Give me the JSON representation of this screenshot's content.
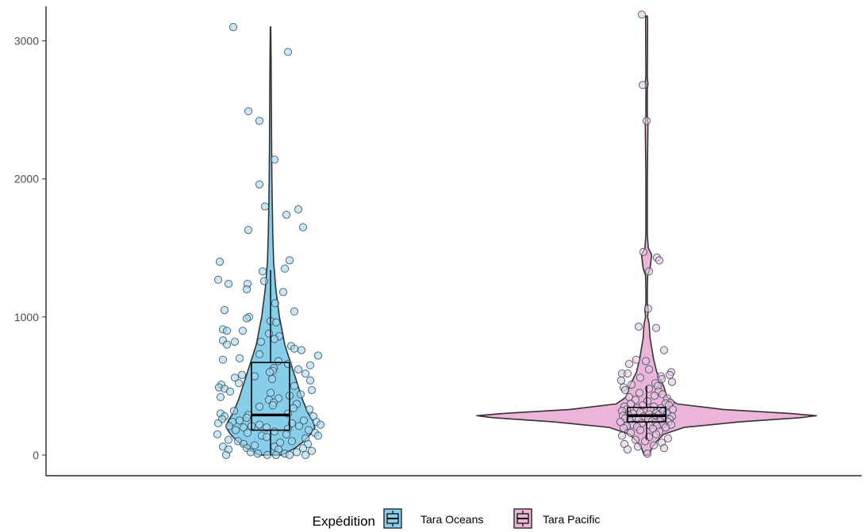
{
  "chart_data": {
    "type": "violin",
    "title": "",
    "xlabel": "",
    "ylabel": "",
    "ylim": [
      -150,
      3250
    ],
    "yticks": [
      0,
      1000,
      2000,
      3000
    ],
    "ytick_labels": [
      "0",
      "1000",
      "2000",
      "3000"
    ],
    "grid": false,
    "legend": {
      "title": "Expédition",
      "position": "bottom"
    },
    "series": [
      {
        "name": "Tara Oceans",
        "color": "#87CEEB",
        "point_color": "#A6D7EE",
        "box": {
          "q1": 180,
          "median": 290,
          "q3": 670,
          "whisker_low": 0,
          "whisker_high": 1340
        },
        "max": 3100,
        "violin_profile": [
          [
            0,
            0.25
          ],
          [
            50,
            0.55
          ],
          [
            100,
            0.75
          ],
          [
            150,
            0.9
          ],
          [
            200,
            1.0
          ],
          [
            250,
            0.95
          ],
          [
            300,
            0.85
          ],
          [
            400,
            0.72
          ],
          [
            500,
            0.62
          ],
          [
            600,
            0.52
          ],
          [
            700,
            0.42
          ],
          [
            800,
            0.32
          ],
          [
            900,
            0.26
          ],
          [
            1000,
            0.2
          ],
          [
            1200,
            0.12
          ],
          [
            1400,
            0.07
          ],
          [
            1600,
            0.05
          ],
          [
            1800,
            0.04
          ],
          [
            2000,
            0.03
          ],
          [
            2200,
            0.025
          ],
          [
            2500,
            0.02
          ],
          [
            2800,
            0.015
          ],
          [
            3100,
            0.006
          ]
        ],
        "points": [
          [
            3100,
            -0.47
          ],
          [
            2920,
            0.22
          ],
          [
            2490,
            -0.28
          ],
          [
            2420,
            -0.14
          ],
          [
            2140,
            0.05
          ],
          [
            1960,
            -0.14
          ],
          [
            1800,
            -0.07
          ],
          [
            1780,
            0.35
          ],
          [
            1740,
            0.2
          ],
          [
            1650,
            0.41
          ],
          [
            1630,
            -0.28
          ],
          [
            1410,
            0.24
          ],
          [
            1400,
            -0.64
          ],
          [
            1350,
            0.18
          ],
          [
            1330,
            -0.1
          ],
          [
            1270,
            -0.66
          ],
          [
            1260,
            -0.08
          ],
          [
            1240,
            -0.29
          ],
          [
            1240,
            -0.53
          ],
          [
            1200,
            -0.3
          ],
          [
            1180,
            0.16
          ],
          [
            1100,
            0.06
          ],
          [
            1050,
            -0.58
          ],
          [
            1040,
            0.3
          ],
          [
            1000,
            -0.27
          ],
          [
            990,
            -0.3
          ],
          [
            970,
            0.0
          ],
          [
            960,
            0.07
          ],
          [
            910,
            -0.6
          ],
          [
            900,
            -0.35
          ],
          [
            900,
            -0.55
          ],
          [
            880,
            -0.02
          ],
          [
            860,
            0.11
          ],
          [
            840,
            0.05
          ],
          [
            820,
            -0.12
          ],
          [
            830,
            -0.6
          ],
          [
            820,
            -0.45
          ],
          [
            800,
            -0.55
          ],
          [
            790,
            0.26
          ],
          [
            770,
            0.3
          ],
          [
            760,
            0.39
          ],
          [
            730,
            -0.14
          ],
          [
            720,
            0.6
          ],
          [
            700,
            -0.39
          ],
          [
            690,
            -0.6
          ],
          [
            680,
            0.1
          ],
          [
            660,
            0.22
          ],
          [
            650,
            0.5
          ],
          [
            630,
            0.04
          ],
          [
            620,
            0.35
          ],
          [
            610,
            0.03
          ],
          [
            600,
            -0.01
          ],
          [
            590,
            0.44
          ],
          [
            580,
            -0.36
          ],
          [
            570,
            -0.2
          ],
          [
            560,
            -0.45
          ],
          [
            550,
            0.02
          ],
          [
            540,
            0.5
          ],
          [
            520,
            -0.4
          ],
          [
            510,
            -0.62
          ],
          [
            500,
            0.3
          ],
          [
            490,
            -0.65
          ],
          [
            480,
            -0.58
          ],
          [
            470,
            0.52
          ],
          [
            460,
            -0.51
          ],
          [
            450,
            0.0
          ],
          [
            440,
            0.38
          ],
          [
            430,
            0.24
          ],
          [
            420,
            -0.63
          ],
          [
            410,
            0.1
          ],
          [
            400,
            -0.02
          ],
          [
            380,
            0.04
          ],
          [
            370,
            0.33
          ],
          [
            360,
            0.03
          ],
          [
            350,
            -0.14
          ],
          [
            340,
            0.29
          ],
          [
            330,
            0.49
          ],
          [
            320,
            -0.46
          ],
          [
            300,
            0.22
          ],
          [
            300,
            -0.63
          ],
          [
            290,
            -0.28
          ],
          [
            280,
            -0.58
          ],
          [
            280,
            0.54
          ],
          [
            270,
            -0.3
          ],
          [
            260,
            -0.61
          ],
          [
            250,
            -0.39
          ],
          [
            250,
            0.42
          ],
          [
            240,
            -0.48
          ],
          [
            240,
            0.58
          ],
          [
            230,
            -0.66
          ],
          [
            230,
            0.27
          ],
          [
            220,
            -0.14
          ],
          [
            220,
            0.63
          ],
          [
            210,
            -0.52
          ],
          [
            210,
            -0.24
          ],
          [
            210,
            0.36
          ],
          [
            200,
            -0.05
          ],
          [
            200,
            -0.34
          ],
          [
            190,
            0.22
          ],
          [
            180,
            -0.44
          ],
          [
            180,
            0.48
          ],
          [
            170,
            0.05
          ],
          [
            160,
            -0.29
          ],
          [
            160,
            0.56
          ],
          [
            150,
            -0.67
          ],
          [
            150,
            0.2
          ],
          [
            140,
            0.6
          ],
          [
            140,
            -0.11
          ],
          [
            130,
            -0.05
          ],
          [
            120,
            0.44
          ],
          [
            110,
            -0.53
          ],
          [
            100,
            0.27
          ],
          [
            100,
            -0.41
          ],
          [
            90,
            0.12
          ],
          [
            80,
            -0.34
          ],
          [
            80,
            0.47
          ],
          [
            70,
            -0.2
          ],
          [
            60,
            -0.6
          ],
          [
            60,
            0.05
          ],
          [
            50,
            -0.3
          ],
          [
            50,
            0.41
          ],
          [
            40,
            0.1
          ],
          [
            40,
            -0.53
          ],
          [
            30,
            0.52
          ],
          [
            20,
            -0.25
          ],
          [
            20,
            0.33
          ],
          [
            10,
            -0.16
          ],
          [
            10,
            0.18
          ],
          [
            0,
            -0.56
          ],
          [
            0,
            -0.04
          ],
          [
            0,
            0.07
          ],
          [
            0,
            0.24
          ],
          [
            0,
            0.44
          ]
        ]
      },
      {
        "name": "Tara Pacific",
        "color": "#EDB4D9",
        "point_color": "#F0C5DE",
        "box": {
          "q1": 240,
          "median": 285,
          "q3": 345,
          "whisker_low": 110,
          "whisker_high": 500
        },
        "max": 3180,
        "violin_profile": [
          [
            0,
            0.015
          ],
          [
            50,
            0.03
          ],
          [
            100,
            0.06
          ],
          [
            150,
            0.1
          ],
          [
            200,
            0.22
          ],
          [
            240,
            0.55
          ],
          [
            270,
            0.9
          ],
          [
            285,
            1.0
          ],
          [
            300,
            0.85
          ],
          [
            330,
            0.45
          ],
          [
            370,
            0.18
          ],
          [
            420,
            0.12
          ],
          [
            500,
            0.1
          ],
          [
            600,
            0.06
          ],
          [
            700,
            0.04
          ],
          [
            850,
            0.02
          ],
          [
            950,
            0.015
          ],
          [
            1000,
            0.006
          ],
          [
            1050,
            0.01
          ],
          [
            1100,
            0.004
          ],
          [
            1200,
            0.004
          ],
          [
            1300,
            0.006
          ],
          [
            1350,
            0.02
          ],
          [
            1400,
            0.025
          ],
          [
            1450,
            0.03
          ],
          [
            1500,
            0.01
          ],
          [
            1600,
            0.004
          ],
          [
            2000,
            0.004
          ],
          [
            2400,
            0.008
          ],
          [
            2450,
            0.004
          ],
          [
            2650,
            0.004
          ],
          [
            2690,
            0.008
          ],
          [
            2740,
            0.004
          ],
          [
            3150,
            0.006
          ],
          [
            3180,
            0.004
          ]
        ],
        "points": [
          [
            3190,
            -0.06
          ],
          [
            2680,
            -0.05
          ],
          [
            2420,
            0.0
          ],
          [
            1470,
            -0.04
          ],
          [
            1430,
            0.13
          ],
          [
            1410,
            0.16
          ],
          [
            1330,
            0.03
          ],
          [
            1060,
            0.02
          ],
          [
            920,
            0.12
          ],
          [
            930,
            -0.1
          ],
          [
            760,
            0.22
          ],
          [
            690,
            -0.13
          ],
          [
            680,
            -0.01
          ],
          [
            660,
            -0.22
          ],
          [
            620,
            0.03
          ],
          [
            600,
            0.31
          ],
          [
            590,
            -0.31
          ],
          [
            590,
            -0.24
          ],
          [
            580,
            0.29
          ],
          [
            570,
            0.18
          ],
          [
            560,
            -0.08
          ],
          [
            550,
            0.19
          ],
          [
            540,
            -0.32
          ],
          [
            530,
            0.32
          ],
          [
            520,
            0.11
          ],
          [
            510,
            -0.19
          ],
          [
            500,
            0.14
          ],
          [
            490,
            -0.29
          ],
          [
            480,
            0.03
          ],
          [
            470,
            -0.27
          ],
          [
            460,
            0.15
          ],
          [
            450,
            -0.09
          ],
          [
            440,
            0.2
          ],
          [
            430,
            0.1
          ],
          [
            420,
            -0.22
          ],
          [
            410,
            0.26
          ],
          [
            400,
            -0.14
          ],
          [
            390,
            0.01
          ],
          [
            380,
            0.3
          ],
          [
            375,
            0.24
          ],
          [
            370,
            -0.2
          ],
          [
            360,
            0.28
          ],
          [
            360,
            -0.05
          ],
          [
            350,
            0.09
          ],
          [
            350,
            -0.28
          ],
          [
            340,
            0.18
          ],
          [
            340,
            -0.12
          ],
          [
            330,
            0.33
          ],
          [
            330,
            -0.25
          ],
          [
            325,
            0.05
          ],
          [
            320,
            -0.31
          ],
          [
            315,
            0.21
          ],
          [
            310,
            -0.08
          ],
          [
            305,
            0.12
          ],
          [
            300,
            -0.17
          ],
          [
            300,
            0.26
          ],
          [
            295,
            0.03
          ],
          [
            290,
            -0.23
          ],
          [
            290,
            0.15
          ],
          [
            285,
            -0.3
          ],
          [
            280,
            0.32
          ],
          [
            280,
            -0.04
          ],
          [
            275,
            0.09
          ],
          [
            270,
            -0.14
          ],
          [
            270,
            0.23
          ],
          [
            265,
            -0.27
          ],
          [
            260,
            0.02
          ],
          [
            260,
            0.29
          ],
          [
            255,
            -0.1
          ],
          [
            250,
            0.17
          ],
          [
            250,
            -0.21
          ],
          [
            245,
            0.07
          ],
          [
            240,
            -0.33
          ],
          [
            240,
            0.27
          ],
          [
            235,
            0.11
          ],
          [
            230,
            -0.06
          ],
          [
            225,
            0.21
          ],
          [
            220,
            -0.18
          ],
          [
            220,
            0.31
          ],
          [
            215,
            0.04
          ],
          [
            210,
            -0.25
          ],
          [
            210,
            0.13
          ],
          [
            205,
            -0.12
          ],
          [
            200,
            0.24
          ],
          [
            195,
            -0.29
          ],
          [
            190,
            0.08
          ],
          [
            180,
            -0.08
          ],
          [
            170,
            0.16
          ],
          [
            160,
            -0.2
          ],
          [
            150,
            0.12
          ],
          [
            140,
            -0.31
          ],
          [
            130,
            0.03
          ],
          [
            120,
            0.27
          ],
          [
            110,
            -0.14
          ],
          [
            100,
            -0.02
          ],
          [
            90,
            0.19
          ],
          [
            80,
            -0.28
          ],
          [
            70,
            0.09
          ],
          [
            60,
            -0.11
          ],
          [
            50,
            0.22
          ],
          [
            40,
            -0.24
          ],
          [
            10,
            0.01
          ]
        ]
      }
    ]
  }
}
